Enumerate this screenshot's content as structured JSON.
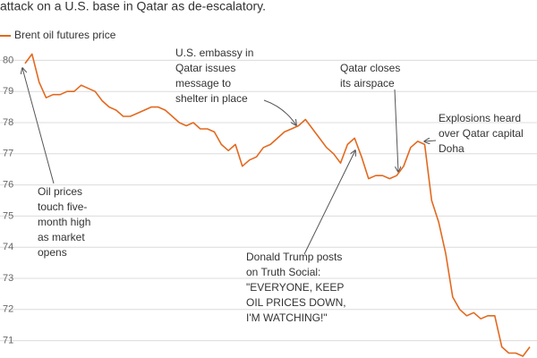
{
  "chart_data": {
    "type": "line",
    "title": "attack on a U.S. base in Qatar as de-escalatory.",
    "categories": [
      null,
      null,
      null,
      null,
      null,
      null,
      null,
      null,
      null,
      null,
      null,
      null,
      null,
      null,
      null,
      null,
      null,
      null,
      null,
      null,
      null,
      null,
      null,
      null,
      null,
      null,
      null,
      null,
      null,
      null,
      null,
      null,
      null,
      null,
      null,
      null,
      null,
      null,
      null,
      null,
      null,
      null,
      null,
      null,
      null,
      null,
      null,
      null,
      null,
      null,
      null,
      null,
      null,
      null,
      null,
      null,
      null,
      null,
      null,
      null,
      null,
      null,
      null,
      null,
      null,
      null,
      null,
      null,
      null,
      null,
      null,
      null,
      null
    ],
    "series": [
      {
        "name": "Brent oil futures price",
        "color": "#e3691f",
        "values": [
          79.9,
          80.2,
          79.3,
          78.8,
          78.9,
          78.9,
          79.0,
          79.0,
          79.2,
          79.1,
          79.0,
          78.7,
          78.5,
          78.4,
          78.2,
          78.2,
          78.3,
          78.4,
          78.5,
          78.5,
          78.4,
          78.2,
          78.0,
          77.9,
          78.0,
          77.8,
          77.8,
          77.7,
          77.3,
          77.1,
          77.3,
          76.6,
          76.8,
          76.9,
          77.2,
          77.3,
          77.5,
          77.7,
          77.8,
          77.9,
          78.1,
          77.8,
          77.5,
          77.2,
          77.0,
          76.7,
          77.3,
          77.5,
          76.9,
          76.2,
          76.3,
          76.3,
          76.2,
          76.3,
          76.6,
          77.2,
          77.4,
          77.3,
          75.5,
          74.8,
          73.8,
          72.4,
          72.0,
          71.8,
          71.9,
          71.7,
          71.8,
          71.8,
          70.8,
          70.6,
          70.6,
          70.5,
          70.8
        ]
      }
    ],
    "ylim": [
      70.5,
      80.5
    ],
    "yticks": [
      71,
      72,
      73,
      74,
      75,
      76,
      77,
      78,
      79,
      80
    ],
    "grid": true,
    "annotations": [
      {
        "lines": [
          "Oil prices",
          "touch five-",
          "month high",
          "as market",
          "opens"
        ]
      },
      {
        "lines": [
          "U.S. embassy in",
          "Qatar issues",
          "message to",
          "shelter in place"
        ]
      },
      {
        "lines": [
          "Qatar closes",
          "its airspace"
        ]
      },
      {
        "lines": [
          "Explosions heard",
          "over Qatar capital",
          "Doha"
        ]
      },
      {
        "lines": [
          "Donald Trump posts",
          "on Truth Social:",
          "\"EVERYONE, KEEP",
          "OIL PRICES DOWN,",
          "I'M WATCHING!\""
        ]
      }
    ]
  }
}
